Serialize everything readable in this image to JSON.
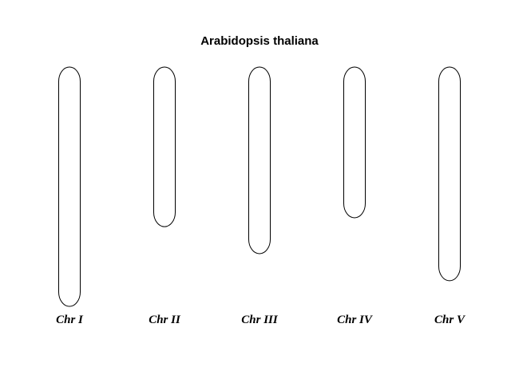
{
  "title": "Arabidopsis thaliana",
  "chromosomes": [
    {
      "label": "Chr I",
      "relative_length": 1.0
    },
    {
      "label": "Chr II",
      "relative_length": 0.667
    },
    {
      "label": "Chr III",
      "relative_length": 0.78
    },
    {
      "label": "Chr IV",
      "relative_length": 0.63
    },
    {
      "label": "Chr V",
      "relative_length": 0.893
    }
  ],
  "colors": {
    "outline": "#000000",
    "fill": "#ffffff",
    "text": "#000000"
  }
}
